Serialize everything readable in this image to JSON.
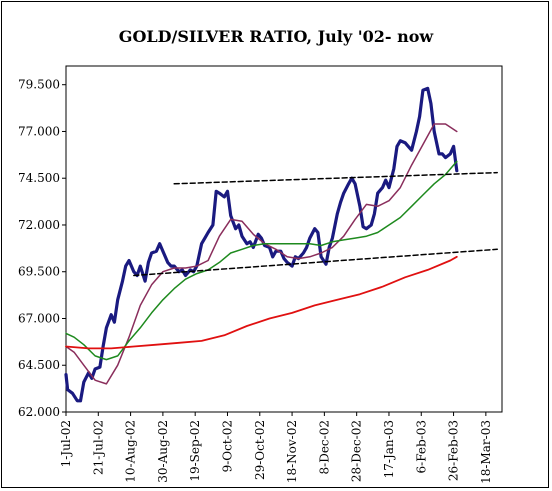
{
  "chart_data": {
    "type": "line",
    "title": "GOLD/SILVER RATIO, July '02- now",
    "xlabel": "",
    "ylabel": "",
    "ylim": [
      62.0,
      80.5
    ],
    "yticks": [
      "62.000",
      "64.500",
      "67.000",
      "69.500",
      "72.000",
      "74.500",
      "77.000",
      "79.500"
    ],
    "yticks_values": [
      62.0,
      64.5,
      67.0,
      69.5,
      72.0,
      74.5,
      77.0,
      79.5
    ],
    "xlim": [
      "2002-07-01",
      "2003-03-28"
    ],
    "xticks": [
      "1-Jul-02",
      "21-Jul-02",
      "10-Aug-02",
      "30-Aug-02",
      "19-Sep-02",
      "9-Oct-02",
      "29-Oct-02",
      "18-Nov-02",
      "8-Dec-02",
      "28-Dec-02",
      "17-Jan-03",
      "6-Feb-03",
      "26-Feb-03",
      "18-Mar-03"
    ],
    "xticks_dates": [
      "2002-07-01",
      "2002-07-21",
      "2002-08-10",
      "2002-08-30",
      "2002-09-19",
      "2002-10-09",
      "2002-10-29",
      "2002-11-18",
      "2002-12-08",
      "2002-12-28",
      "2003-01-17",
      "2003-02-06",
      "2003-02-26",
      "2003-03-18"
    ],
    "grid": false,
    "legend": "none",
    "series": [
      {
        "color": "#1a1a80",
        "x": [
          "2002-07-01",
          "2002-07-02",
          "2002-07-05",
          "2002-07-08",
          "2002-07-10",
          "2002-07-12",
          "2002-07-15",
          "2002-07-17",
          "2002-07-19",
          "2002-07-22",
          "2002-07-24",
          "2002-07-26",
          "2002-07-29",
          "2002-07-31",
          "2002-08-02",
          "2002-08-05",
          "2002-08-07",
          "2002-08-09",
          "2002-08-12",
          "2002-08-14",
          "2002-08-16",
          "2002-08-19",
          "2002-08-21",
          "2002-08-23",
          "2002-08-26",
          "2002-08-28",
          "2002-08-30",
          "2002-09-02",
          "2002-09-04",
          "2002-09-06",
          "2002-09-09",
          "2002-09-11",
          "2002-09-13",
          "2002-09-16",
          "2002-09-18",
          "2002-09-20",
          "2002-09-23",
          "2002-09-25",
          "2002-09-27",
          "2002-09-30",
          "2002-10-02",
          "2002-10-04",
          "2002-10-07",
          "2002-10-09",
          "2002-10-11",
          "2002-10-14",
          "2002-10-16",
          "2002-10-18",
          "2002-10-21",
          "2002-10-23",
          "2002-10-25",
          "2002-10-28",
          "2002-10-30",
          "2002-11-01",
          "2002-11-04",
          "2002-11-06",
          "2002-11-08",
          "2002-11-11",
          "2002-11-13",
          "2002-11-15",
          "2002-11-18",
          "2002-11-20",
          "2002-11-22",
          "2002-11-25",
          "2002-11-27",
          "2002-11-29",
          "2002-12-02",
          "2002-12-04",
          "2002-12-06",
          "2002-12-09",
          "2002-12-11",
          "2002-12-13",
          "2002-12-16",
          "2002-12-18",
          "2002-12-20",
          "2002-12-23",
          "2002-12-25",
          "2002-12-27",
          "2002-12-30",
          "2003-01-01",
          "2003-01-03",
          "2003-01-06",
          "2003-01-08",
          "2003-01-10",
          "2003-01-13",
          "2003-01-15",
          "2003-01-17",
          "2003-01-20",
          "2003-01-22",
          "2003-01-24",
          "2003-01-27",
          "2003-01-29",
          "2003-01-31",
          "2003-02-03",
          "2003-02-05",
          "2003-02-07",
          "2003-02-10",
          "2003-02-12",
          "2003-02-14",
          "2003-02-17",
          "2003-02-19",
          "2003-02-21",
          "2003-02-24",
          "2003-02-26",
          "2003-02-28"
        ],
        "y": [
          64.0,
          63.2,
          63.0,
          62.6,
          62.6,
          63.6,
          64.1,
          63.8,
          64.3,
          64.4,
          65.5,
          66.5,
          67.2,
          66.8,
          68.0,
          69.0,
          69.8,
          70.1,
          69.5,
          69.3,
          69.8,
          69.0,
          70.0,
          70.5,
          70.6,
          71.0,
          70.6,
          70.0,
          69.8,
          69.8,
          69.5,
          69.6,
          69.3,
          69.6,
          69.5,
          69.8,
          71.0,
          71.3,
          71.6,
          72.0,
          73.8,
          73.7,
          73.5,
          73.8,
          72.5,
          71.8,
          72.0,
          71.4,
          71.0,
          71.1,
          70.8,
          71.5,
          71.3,
          70.9,
          70.8,
          70.3,
          70.6,
          70.6,
          70.2,
          70.0,
          69.8,
          70.3,
          70.2,
          70.5,
          70.8,
          71.3,
          71.8,
          71.6,
          70.3,
          69.9,
          70.8,
          71.3,
          72.6,
          73.2,
          73.7,
          74.2,
          74.5,
          74.2,
          73.0,
          71.9,
          71.8,
          72.0,
          72.6,
          73.7,
          74.0,
          74.4,
          74.0,
          75.0,
          76.2,
          76.5,
          76.4,
          76.2,
          76.0,
          77.0,
          77.8,
          79.2,
          79.3,
          78.5,
          77.0,
          75.8,
          75.8,
          75.6,
          75.8,
          76.2,
          74.9
        ]
      },
      {
        "color": "#8a2e5c",
        "x": [
          "2002-07-01",
          "2002-07-06",
          "2002-07-12",
          "2002-07-19",
          "2002-07-26",
          "2002-08-02",
          "2002-08-09",
          "2002-08-16",
          "2002-08-23",
          "2002-08-30",
          "2002-09-06",
          "2002-09-13",
          "2002-09-20",
          "2002-09-27",
          "2002-10-04",
          "2002-10-11",
          "2002-10-18",
          "2002-10-25",
          "2002-11-01",
          "2002-11-08",
          "2002-11-15",
          "2002-11-22",
          "2002-11-29",
          "2002-12-06",
          "2002-12-13",
          "2002-12-20",
          "2002-12-27",
          "2003-01-03",
          "2003-01-10",
          "2003-01-17",
          "2003-01-24",
          "2003-01-31",
          "2003-02-07",
          "2003-02-14",
          "2003-02-21",
          "2003-02-28"
        ],
        "y": [
          65.5,
          65.2,
          64.5,
          63.7,
          63.5,
          64.5,
          66.0,
          67.7,
          68.8,
          69.5,
          69.7,
          69.7,
          69.8,
          70.1,
          71.4,
          72.3,
          72.2,
          71.5,
          71.0,
          70.7,
          70.3,
          70.2,
          70.3,
          70.5,
          70.8,
          71.4,
          72.3,
          73.1,
          73.0,
          73.3,
          74.0,
          75.2,
          76.3,
          77.4,
          77.4,
          77.0
        ]
      },
      {
        "color": "#1e8a1e",
        "x": [
          "2002-07-01",
          "2002-07-06",
          "2002-07-12",
          "2002-07-19",
          "2002-07-26",
          "2002-08-02",
          "2002-08-09",
          "2002-08-16",
          "2002-08-23",
          "2002-08-30",
          "2002-09-06",
          "2002-09-13",
          "2002-09-20",
          "2002-09-27",
          "2002-10-04",
          "2002-10-11",
          "2002-10-18",
          "2002-10-25",
          "2002-11-01",
          "2002-11-08",
          "2002-11-15",
          "2002-11-22",
          "2002-11-29",
          "2002-12-06",
          "2002-12-13",
          "2002-12-20",
          "2002-12-27",
          "2003-01-03",
          "2003-01-10",
          "2003-01-17",
          "2003-01-24",
          "2003-01-31",
          "2003-02-07",
          "2003-02-14",
          "2003-02-21",
          "2003-02-28"
        ],
        "y": [
          66.2,
          66.0,
          65.6,
          65.0,
          64.8,
          65.0,
          65.8,
          66.5,
          67.3,
          68.0,
          68.6,
          69.1,
          69.4,
          69.6,
          70.0,
          70.5,
          70.7,
          70.9,
          71.0,
          71.0,
          71.0,
          71.0,
          71.0,
          70.9,
          71.1,
          71.2,
          71.3,
          71.4,
          71.6,
          72.0,
          72.4,
          73.0,
          73.6,
          74.2,
          74.7,
          75.4
        ]
      },
      {
        "color": "#e01010",
        "x": [
          "2002-07-01",
          "2002-07-15",
          "2002-07-29",
          "2002-08-12",
          "2002-08-26",
          "2002-09-09",
          "2002-09-23",
          "2002-10-07",
          "2002-10-21",
          "2002-11-04",
          "2002-11-18",
          "2002-12-02",
          "2002-12-16",
          "2002-12-30",
          "2003-01-13",
          "2003-01-27",
          "2003-02-10",
          "2003-02-24",
          "2003-02-28"
        ],
        "y": [
          65.5,
          65.4,
          65.4,
          65.5,
          65.6,
          65.7,
          65.8,
          66.1,
          66.6,
          67.0,
          67.3,
          67.7,
          68.0,
          68.3,
          68.7,
          69.2,
          69.6,
          70.1,
          70.3
        ]
      },
      {
        "color": "#000000",
        "dashed": true,
        "x": [
          "2002-08-12",
          "2003-03-25"
        ],
        "y": [
          69.3,
          70.7
        ]
      },
      {
        "color": "#000000",
        "dashed": true,
        "x": [
          "2002-09-06",
          "2003-03-25"
        ],
        "y": [
          74.2,
          74.8
        ]
      }
    ]
  }
}
